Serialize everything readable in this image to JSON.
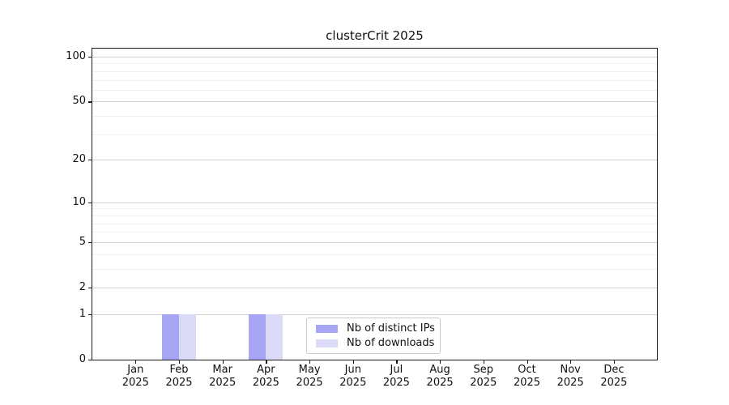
{
  "figure": {
    "title": "clusterCrit 2025"
  },
  "colors": {
    "distinct_ips_bar": "#a6a6f5",
    "downloads_bar": "#dbdbf8",
    "major_grid": "#d4d4d4",
    "minor_grid": "#f0f0f0",
    "axis": "#1a1a1a",
    "legend_border": "#c9c9c9",
    "background": "#ffffff"
  },
  "chart_data": {
    "type": "bar",
    "title": "clusterCrit 2025",
    "categories": [
      "Jan 2025",
      "Feb 2025",
      "Mar 2025",
      "Apr 2025",
      "May 2025",
      "Jun 2025",
      "Jul 2025",
      "Aug 2025",
      "Sep 2025",
      "Oct 2025",
      "Nov 2025",
      "Dec 2025"
    ],
    "x_tick_labels": [
      [
        "Jan",
        "2025"
      ],
      [
        "Feb",
        "2025"
      ],
      [
        "Mar",
        "2025"
      ],
      [
        "Apr",
        "2025"
      ],
      [
        "May",
        "2025"
      ],
      [
        "Jun",
        "2025"
      ],
      [
        "Jul",
        "2025"
      ],
      [
        "Aug",
        "2025"
      ],
      [
        "Sep",
        "2025"
      ],
      [
        "Oct",
        "2025"
      ],
      [
        "Nov",
        "2025"
      ],
      [
        "Dec",
        "2025"
      ]
    ],
    "series": [
      {
        "name": "Nb of distinct IPs",
        "color": "#a6a6f5",
        "values": [
          0,
          1,
          0,
          1,
          0,
          0,
          0,
          0,
          0,
          0,
          0,
          0
        ]
      },
      {
        "name": "Nb of downloads",
        "color": "#dbdbf8",
        "values": [
          0,
          1,
          0,
          1,
          0,
          0,
          0,
          0,
          0,
          0,
          0,
          0
        ]
      }
    ],
    "xlabel": "",
    "ylabel": "",
    "y_scale": "log1p",
    "y_axis_major_ticks": [
      0,
      1,
      2,
      5,
      10,
      20,
      50,
      100
    ],
    "y_axis_minor_ticks": [
      3,
      4,
      6,
      7,
      8,
      9,
      30,
      40,
      60,
      70,
      80,
      90
    ],
    "ylim": [
      0,
      115
    ],
    "grid": "horizontal",
    "legend": {
      "position": "inside-lower-center",
      "entries": [
        "Nb of distinct IPs",
        "Nb of downloads"
      ]
    }
  }
}
